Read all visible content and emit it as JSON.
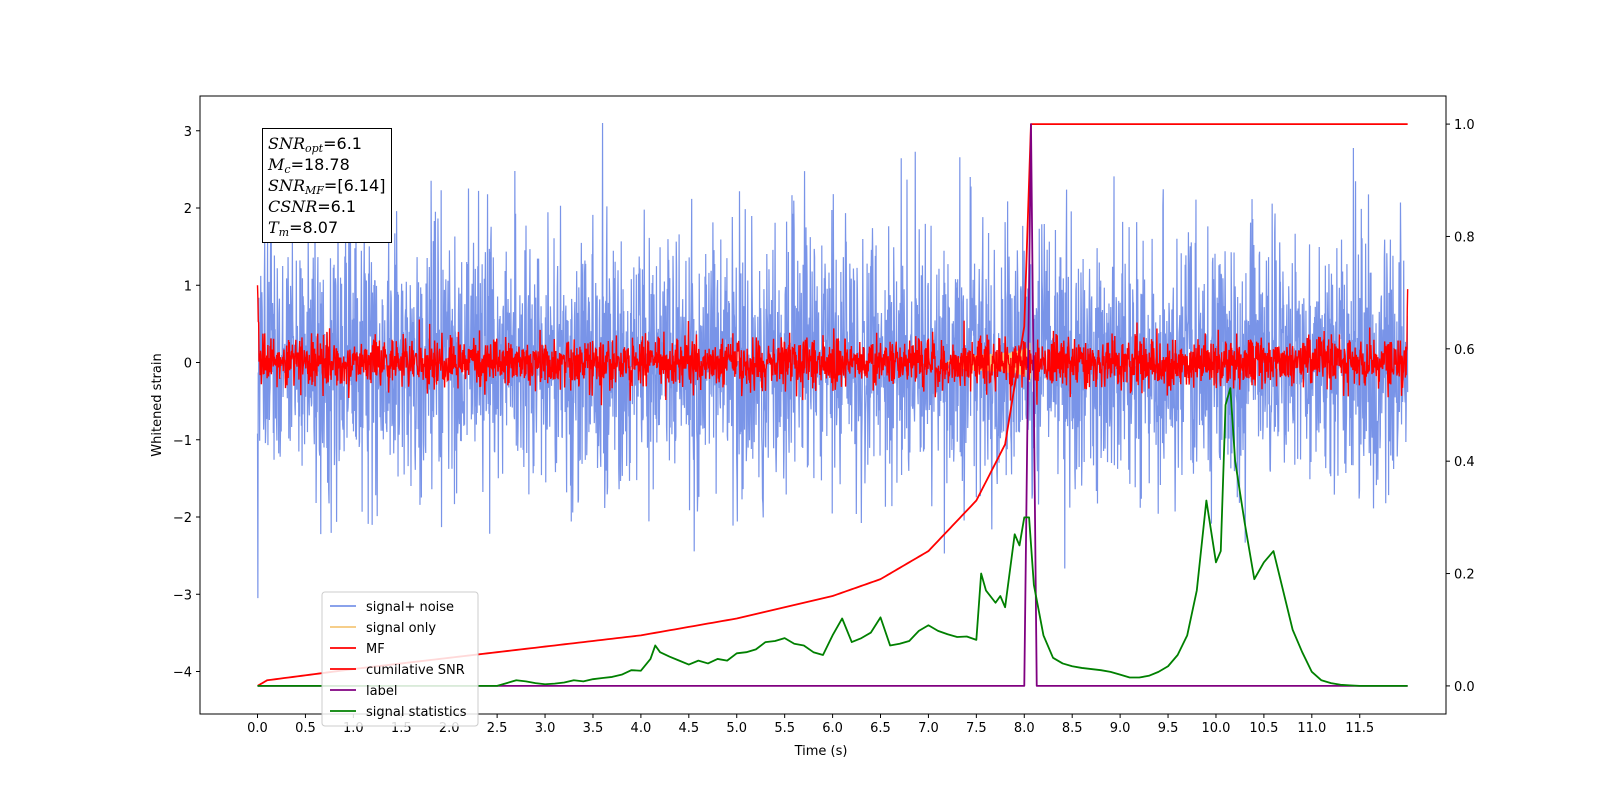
{
  "chart_data": {
    "type": "line",
    "xlabel": "Time (s)",
    "ylabel": "Whitened strain",
    "xlim": [
      -0.6,
      12.4
    ],
    "ylim": [
      -4.55,
      3.45
    ],
    "y2lim": [
      -0.05,
      1.05
    ],
    "xticks": [
      "0.0",
      "0.5",
      "1.0",
      "1.5",
      "2.0",
      "2.5",
      "3.0",
      "3.5",
      "4.0",
      "4.5",
      "5.0",
      "5.5",
      "6.0",
      "6.5",
      "7.0",
      "7.5",
      "8.0",
      "8.5",
      "9.0",
      "9.5",
      "10.0",
      "10.5",
      "11.0",
      "11.5"
    ],
    "yticks": [
      "−4",
      "−3",
      "−2",
      "−1",
      "0",
      "1",
      "2",
      "3"
    ],
    "y2ticks": [
      "0.0",
      "0.2",
      "0.4",
      "0.6",
      "0.8",
      "1.0"
    ],
    "legend_location": "lower-left",
    "series": [
      {
        "name": "signal+ noise",
        "color": "#7994e8",
        "axis": "left",
        "kind": "noise",
        "x_range": [
          0.0,
          12.0
        ],
        "amplitude_sd": 0.85,
        "range": [
          -3.05,
          3.1
        ]
      },
      {
        "name": "signal only",
        "color": "#f5c77a",
        "axis": "left",
        "kind": "chirp",
        "x_range": [
          7.2,
          8.07
        ],
        "peak_amplitude": 0.35
      },
      {
        "name": "MF",
        "color": "#ff0000",
        "axis": "left",
        "kind": "noise",
        "x_range": [
          0.0,
          12.0
        ],
        "amplitude_sd": 0.16,
        "start_value": 1.0,
        "end_value": 0.95
      },
      {
        "name": "cumilative SNR",
        "color": "#ff0000",
        "axis": "right",
        "x": [
          0.0,
          0.1,
          1.0,
          2.0,
          3.0,
          4.0,
          5.0,
          6.0,
          6.5,
          7.0,
          7.5,
          7.8,
          8.0,
          8.07,
          12.0
        ],
        "y": [
          0.0,
          0.01,
          0.03,
          0.05,
          0.07,
          0.09,
          0.12,
          0.16,
          0.19,
          0.24,
          0.33,
          0.43,
          0.64,
          1.0,
          1.0
        ]
      },
      {
        "name": "label",
        "color": "#800080",
        "axis": "right",
        "x": [
          0.0,
          8.0,
          8.07,
          8.13,
          12.0
        ],
        "y": [
          0.0,
          0.0,
          1.0,
          0.0,
          0.0
        ]
      },
      {
        "name": "signal statistics",
        "color": "#008000",
        "axis": "right",
        "x": [
          0.0,
          0.5,
          1.0,
          1.5,
          2.0,
          2.5,
          2.6,
          2.7,
          2.8,
          2.9,
          3.0,
          3.1,
          3.2,
          3.3,
          3.4,
          3.5,
          3.6,
          3.7,
          3.8,
          3.9,
          4.0,
          4.1,
          4.15,
          4.2,
          4.3,
          4.4,
          4.5,
          4.6,
          4.7,
          4.8,
          4.9,
          5.0,
          5.1,
          5.2,
          5.3,
          5.4,
          5.5,
          5.6,
          5.7,
          5.8,
          5.9,
          6.0,
          6.1,
          6.2,
          6.3,
          6.4,
          6.5,
          6.6,
          6.7,
          6.8,
          6.9,
          7.0,
          7.1,
          7.2,
          7.3,
          7.4,
          7.5,
          7.55,
          7.6,
          7.7,
          7.75,
          7.8,
          7.9,
          7.95,
          8.0,
          8.05,
          8.1,
          8.2,
          8.3,
          8.4,
          8.5,
          8.6,
          8.7,
          8.8,
          8.9,
          9.0,
          9.1,
          9.2,
          9.3,
          9.4,
          9.5,
          9.6,
          9.7,
          9.8,
          9.9,
          10.0,
          10.05,
          10.1,
          10.15,
          10.2,
          10.3,
          10.4,
          10.5,
          10.6,
          10.7,
          10.8,
          10.9,
          11.0,
          11.1,
          11.2,
          11.3,
          11.4,
          11.5,
          12.0
        ],
        "y": [
          0.0,
          0.0,
          0.0,
          0.0,
          0.0,
          0.0,
          0.005,
          0.01,
          0.008,
          0.005,
          0.003,
          0.004,
          0.006,
          0.01,
          0.008,
          0.012,
          0.014,
          0.016,
          0.02,
          0.028,
          0.027,
          0.048,
          0.072,
          0.06,
          0.052,
          0.045,
          0.038,
          0.045,
          0.04,
          0.048,
          0.045,
          0.058,
          0.06,
          0.065,
          0.078,
          0.08,
          0.085,
          0.075,
          0.072,
          0.06,
          0.055,
          0.09,
          0.12,
          0.078,
          0.085,
          0.095,
          0.122,
          0.072,
          0.075,
          0.08,
          0.098,
          0.108,
          0.098,
          0.092,
          0.087,
          0.088,
          0.082,
          0.2,
          0.17,
          0.148,
          0.16,
          0.14,
          0.27,
          0.25,
          0.3,
          0.3,
          0.18,
          0.09,
          0.05,
          0.04,
          0.035,
          0.032,
          0.03,
          0.028,
          0.025,
          0.02,
          0.015,
          0.015,
          0.018,
          0.025,
          0.035,
          0.055,
          0.09,
          0.17,
          0.33,
          0.22,
          0.24,
          0.5,
          0.53,
          0.4,
          0.29,
          0.19,
          0.22,
          0.24,
          0.17,
          0.1,
          0.06,
          0.025,
          0.01,
          0.005,
          0.002,
          0.001,
          0.0,
          0.0
        ]
      }
    ]
  },
  "info_box": {
    "snr_opt_label": "SNR",
    "snr_opt_sub": "opt",
    "snr_opt_value": "=6.1",
    "mc_label": "M",
    "mc_sub": "c",
    "mc_value": "=18.78",
    "snr_mf_label": "SNR",
    "snr_mf_sub": "MF",
    "snr_mf_value": "=[6.14]",
    "csnr_label": "CSNR",
    "csnr_value": "=6.1",
    "tm_label": "T",
    "tm_sub": "m",
    "tm_value": "=8.07"
  }
}
